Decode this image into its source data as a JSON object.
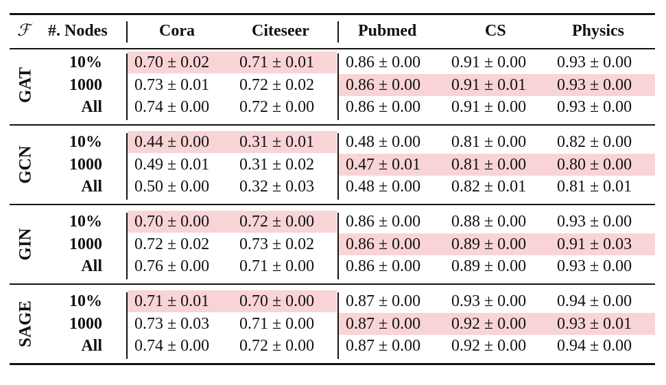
{
  "table": {
    "header": {
      "f_symbol": "ℱ",
      "nodes": "#. Nodes",
      "datasets": [
        "Cora",
        "Citeseer",
        "Pubmed",
        "CS",
        "Physics"
      ]
    },
    "highlight_color": "#f9d4d6",
    "groups": [
      {
        "name": "GAT",
        "rows": [
          {
            "nodes": "10%",
            "values": [
              "0.70 ± 0.02",
              "0.71 ± 0.01",
              "0.86 ± 0.00",
              "0.91 ± 0.00",
              "0.93 ± 0.00"
            ],
            "highlight": "left"
          },
          {
            "nodes": "1000",
            "values": [
              "0.73 ± 0.01",
              "0.72 ± 0.02",
              "0.86 ± 0.00",
              "0.91 ± 0.01",
              "0.93 ± 0.00"
            ],
            "highlight": "right"
          },
          {
            "nodes": "All",
            "values": [
              "0.74 ± 0.00",
              "0.72 ± 0.00",
              "0.86 ± 0.00",
              "0.91 ± 0.00",
              "0.93 ± 0.00"
            ],
            "highlight": "none"
          }
        ]
      },
      {
        "name": "GCN",
        "rows": [
          {
            "nodes": "10%",
            "values": [
              "0.44 ± 0.00",
              "0.31 ± 0.01",
              "0.48 ± 0.00",
              "0.81 ± 0.00",
              "0.82 ± 0.00"
            ],
            "highlight": "left"
          },
          {
            "nodes": "1000",
            "values": [
              "0.49 ± 0.01",
              "0.31 ± 0.02",
              "0.47 ± 0.01",
              "0.81 ± 0.00",
              "0.80 ± 0.00"
            ],
            "highlight": "right"
          },
          {
            "nodes": "All",
            "values": [
              "0.50 ± 0.00",
              "0.32 ± 0.03",
              "0.48 ± 0.00",
              "0.82 ± 0.01",
              "0.81 ± 0.01"
            ],
            "highlight": "none"
          }
        ]
      },
      {
        "name": "GIN",
        "rows": [
          {
            "nodes": "10%",
            "values": [
              "0.70 ± 0.00",
              "0.72 ± 0.00",
              "0.86 ± 0.00",
              "0.88 ± 0.00",
              "0.93 ± 0.00"
            ],
            "highlight": "left"
          },
          {
            "nodes": "1000",
            "values": [
              "0.72 ± 0.02",
              "0.73 ± 0.02",
              "0.86 ± 0.00",
              "0.89 ± 0.00",
              "0.91 ± 0.03"
            ],
            "highlight": "right"
          },
          {
            "nodes": "All",
            "values": [
              "0.76 ± 0.00",
              "0.71 ± 0.00",
              "0.86 ± 0.00",
              "0.89 ± 0.00",
              "0.93 ± 0.00"
            ],
            "highlight": "none"
          }
        ]
      },
      {
        "name": "SAGE",
        "rows": [
          {
            "nodes": "10%",
            "values": [
              "0.71 ± 0.01",
              "0.70 ± 0.00",
              "0.87 ± 0.00",
              "0.93 ± 0.00",
              "0.94 ± 0.00"
            ],
            "highlight": "left"
          },
          {
            "nodes": "1000",
            "values": [
              "0.73 ± 0.03",
              "0.71 ± 0.00",
              "0.87 ± 0.00",
              "0.92 ± 0.00",
              "0.93 ± 0.01"
            ],
            "highlight": "right"
          },
          {
            "nodes": "All",
            "values": [
              "0.74 ± 0.00",
              "0.72 ± 0.00",
              "0.87 ± 0.00",
              "0.92 ± 0.00",
              "0.94 ± 0.00"
            ],
            "highlight": "none"
          }
        ]
      }
    ]
  }
}
